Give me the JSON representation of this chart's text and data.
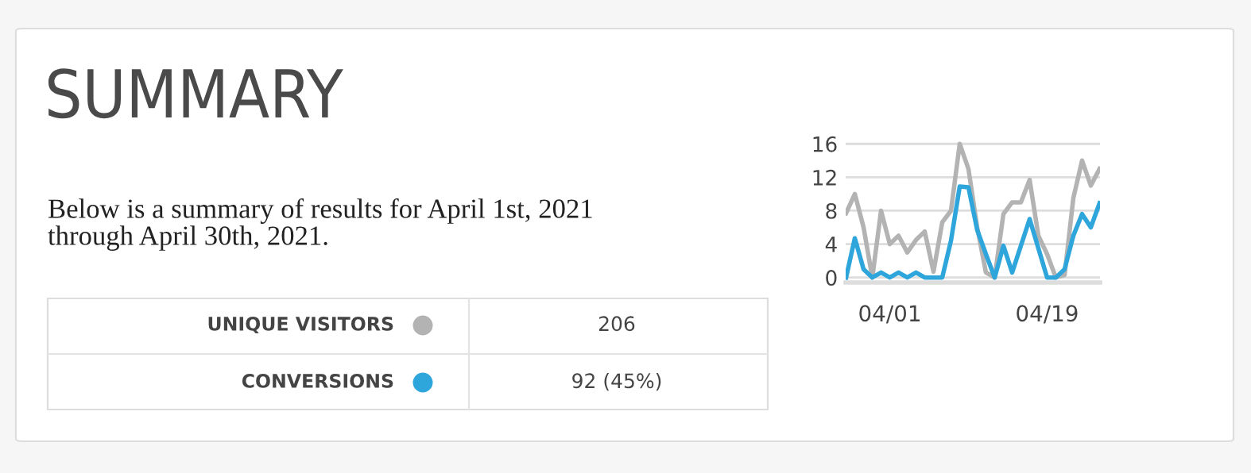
{
  "chart_data": {
    "type": "line",
    "title": "SUMMARY",
    "subtitle": "Below is a summary of results for April 1st, 2021\nthrough April 30th, 2021.",
    "categories": [
      null,
      null,
      null,
      null,
      null,
      "04/01",
      null,
      null,
      null,
      null,
      null,
      null,
      null,
      null,
      null,
      null,
      null,
      null,
      null,
      null,
      null,
      null,
      null,
      "04/19",
      null,
      null,
      null,
      null,
      null,
      null
    ],
    "ylim": [
      -0.6,
      16.5
    ],
    "yticks": [
      0,
      4,
      8,
      12,
      16
    ],
    "grid": "y",
    "legend": "left",
    "marker": "none",
    "line_style": "solid",
    "series": [
      {
        "name": "UNIQUE VISITORS",
        "color": "#b3b3b3",
        "values": [
          7.7,
          10,
          6,
          0,
          8,
          4,
          5,
          3,
          4.5,
          5.5,
          0.7,
          6.6,
          8,
          16,
          13,
          6,
          0.6,
          0,
          7.6,
          9,
          9,
          11.7,
          5,
          2.8,
          0,
          0.3,
          9.5,
          14,
          11,
          13
        ]
      },
      {
        "name": "CONVERSIONS",
        "color": "#2ea6db",
        "values": [
          0,
          4.7,
          1,
          0,
          0.6,
          0,
          0.6,
          0,
          0.6,
          0,
          0,
          0,
          4.4,
          10.9,
          10.8,
          5.7,
          2.8,
          0,
          3.8,
          0.6,
          3.8,
          7,
          3.5,
          0,
          0,
          1,
          5,
          7.6,
          6,
          8.9
        ]
      }
    ],
    "annotations": [
      "206",
      "92 (45%)"
    ]
  }
}
